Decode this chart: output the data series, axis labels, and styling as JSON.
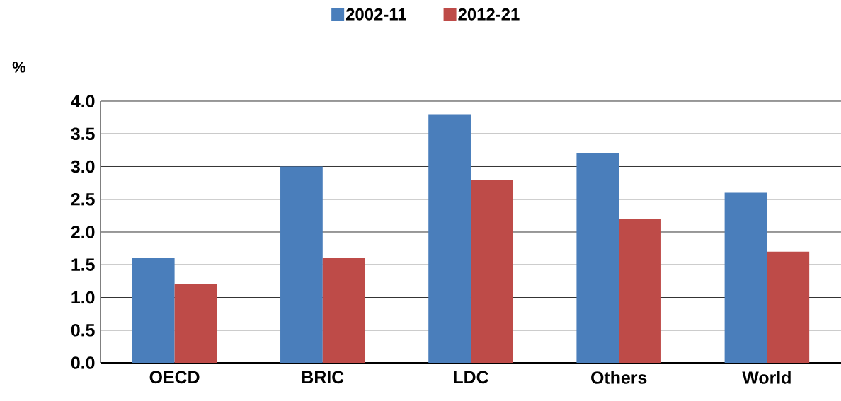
{
  "chart_data": {
    "type": "bar",
    "ylabel": "%",
    "categories": [
      "OECD",
      "BRIC",
      "LDC",
      "Others",
      "World"
    ],
    "series": [
      {
        "name": "2002-11",
        "color": "#4a7ebb",
        "values": [
          1.6,
          3.0,
          3.8,
          3.2,
          2.6
        ]
      },
      {
        "name": "2012-21",
        "color": "#be4b48",
        "values": [
          1.2,
          1.6,
          2.8,
          2.2,
          1.7
        ]
      }
    ],
    "ylim": [
      0,
      4
    ],
    "yticks": [
      {
        "value": 0,
        "label": "0.0"
      },
      {
        "value": 0.5,
        "label": "0.5"
      },
      {
        "value": 1,
        "label": "1.0"
      },
      {
        "value": 1.5,
        "label": "1.5"
      },
      {
        "value": 2,
        "label": "2.0"
      },
      {
        "value": 2.5,
        "label": "2.5"
      },
      {
        "value": 3,
        "label": "3.0"
      },
      {
        "value": 3.5,
        "label": "3.5"
      },
      {
        "value": 4,
        "label": "4.0"
      }
    ],
    "grid": "y",
    "legend": "top"
  }
}
